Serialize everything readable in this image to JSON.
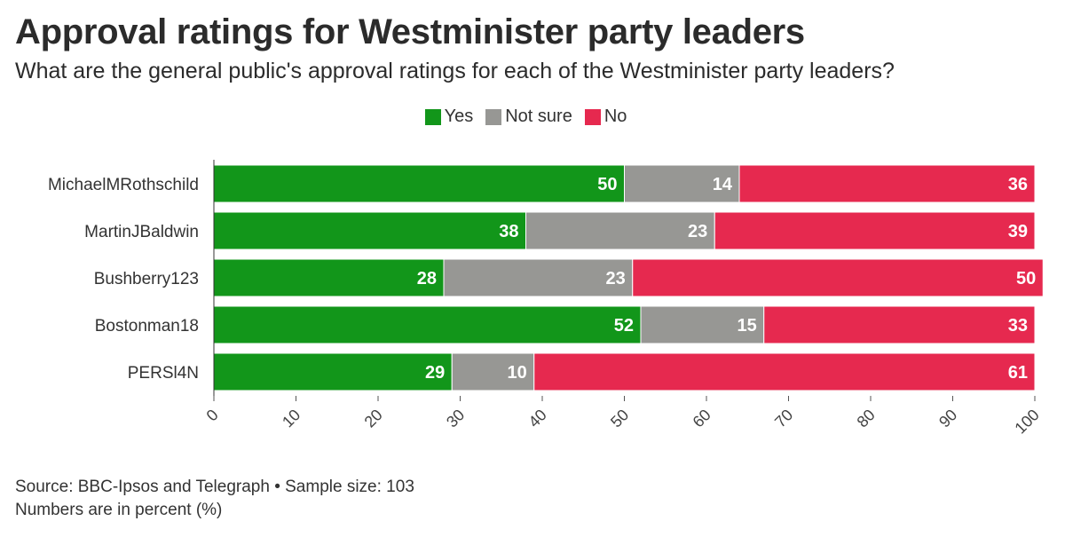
{
  "title": "Approval ratings for Westminister party leaders",
  "subtitle": "What are the general public's approval ratings for each of the Westminister party leaders?",
  "source": "Source: BBC-Ipsos and Telegraph • Sample size: 103",
  "note": "Numbers are in percent (%)",
  "chart_data": {
    "type": "bar",
    "orientation": "horizontal",
    "stacked": true,
    "categories": [
      "MichaelMRothschild",
      "MartinJBaldwin",
      "Bushberry123",
      "Bostonman18",
      "PERSl4N"
    ],
    "series": [
      {
        "name": "Yes",
        "color": "#12961a",
        "values": [
          50,
          38,
          28,
          52,
          29
        ]
      },
      {
        "name": "Not sure",
        "color": "#979794",
        "values": [
          14,
          23,
          23,
          15,
          10
        ]
      },
      {
        "name": "No",
        "color": "#e6294f",
        "values": [
          36,
          39,
          50,
          33,
          61
        ]
      }
    ],
    "xlim": [
      0,
      100
    ],
    "xticks": [
      0,
      10,
      20,
      30,
      40,
      50,
      60,
      70,
      80,
      90,
      100
    ],
    "legend_position": "top",
    "grid": false
  }
}
